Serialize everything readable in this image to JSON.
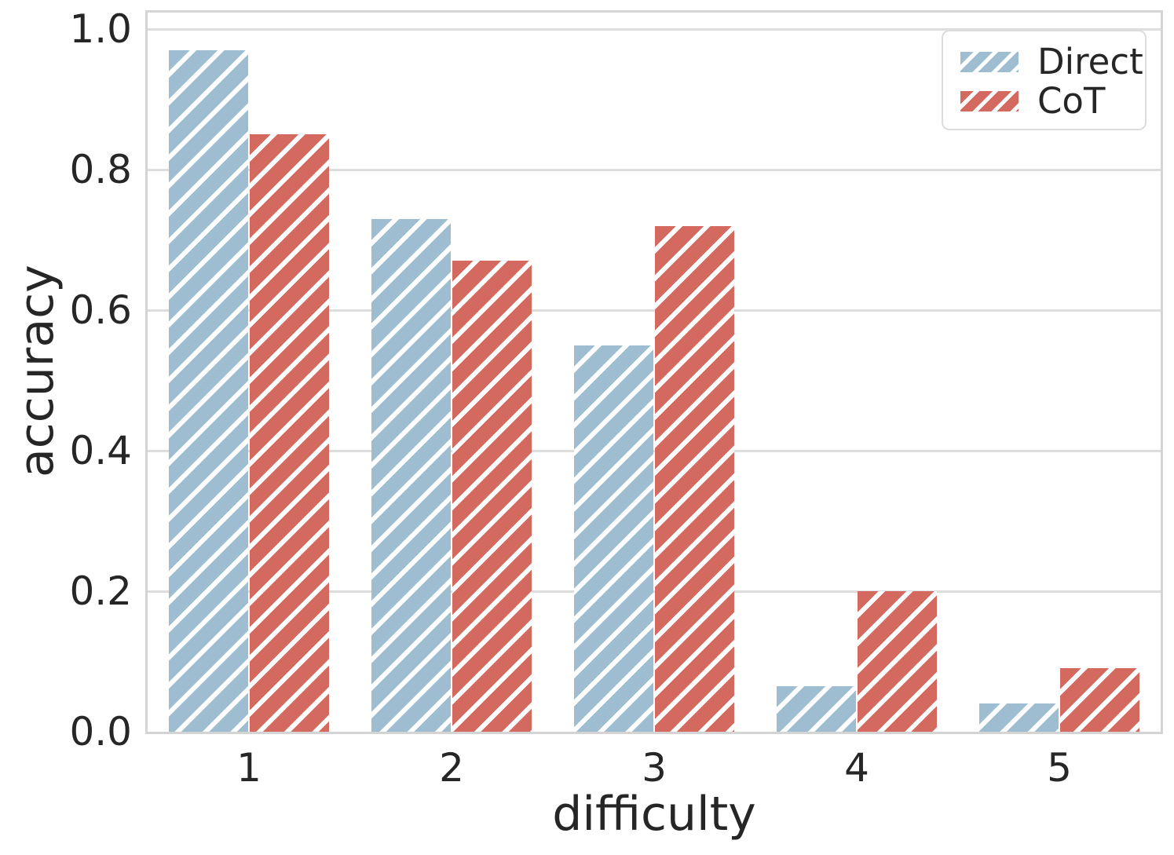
{
  "chart_data": {
    "type": "bar",
    "title": "",
    "xlabel": "difficulty",
    "ylabel": "accuracy",
    "categories": [
      "1",
      "2",
      "3",
      "4",
      "5"
    ],
    "series": [
      {
        "name": "Direct",
        "color": "#9ebdd1",
        "values": [
          0.97,
          0.73,
          0.55,
          0.065,
          0.04
        ]
      },
      {
        "name": "CoT",
        "color": "#d3695f",
        "values": [
          0.85,
          0.67,
          0.72,
          0.2,
          0.09
        ]
      }
    ],
    "yticks": [
      0.0,
      0.2,
      0.4,
      0.6,
      0.8,
      1.0
    ],
    "ylim": [
      0.0,
      1.025
    ],
    "grid": "horizontal",
    "hatch_pattern": "/",
    "hatch_color": "#ffffff",
    "legend_position": "upper-right",
    "bar_group_ratio": 0.8
  }
}
